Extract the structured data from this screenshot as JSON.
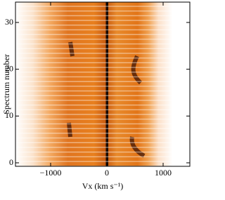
{
  "chart_data": {
    "type": "image",
    "xlabel": "Vx (km s⁻¹)",
    "ylabel": "Spectrum number",
    "xlim": [
      -1625,
      1475
    ],
    "xticks": [
      {
        "value": -1000,
        "label": "−1000"
      },
      0,
      1000
    ],
    "ylim": [
      -0.75,
      34.35
    ],
    "yticks": [
      0,
      10,
      20,
      30
    ]
  }
}
